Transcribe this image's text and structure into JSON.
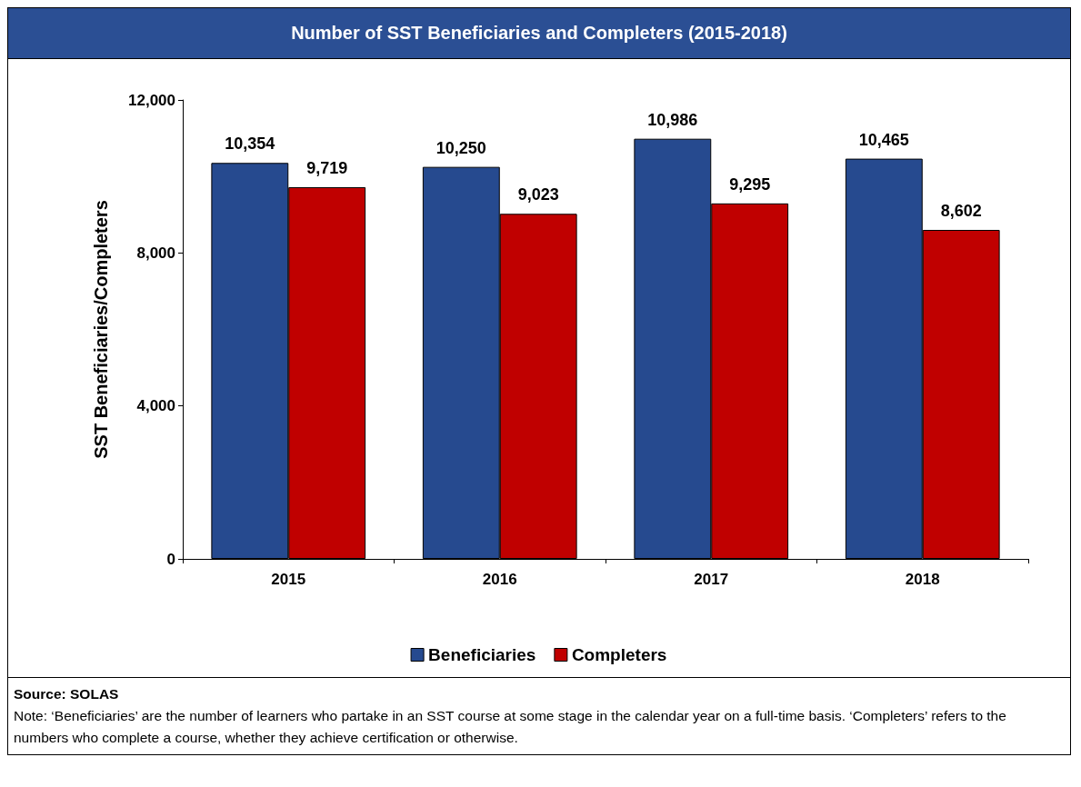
{
  "chart_data": {
    "type": "bar",
    "title": "Number of SST Beneficiaries and Completers (2015-2018)",
    "ylabel": "SST Beneficiaries/Completers",
    "categories": [
      "2015",
      "2016",
      "2017",
      "2018"
    ],
    "series": [
      {
        "name": "Beneficiaries",
        "color": "#264a8f",
        "values": [
          10354,
          10250,
          10986,
          10465
        ],
        "value_labels": [
          "10,354",
          "10,250",
          "10,986",
          "10,465"
        ]
      },
      {
        "name": "Completers",
        "color": "#c00000",
        "values": [
          9719,
          9023,
          9295,
          8602
        ],
        "value_labels": [
          "9,719",
          "9,023",
          "9,295",
          "8,602"
        ]
      }
    ],
    "ylim": [
      0,
      12000
    ],
    "yticks": [
      0,
      {
        "value": 4000,
        "label": "4,000"
      },
      {
        "value": 8000,
        "label": "8,000"
      },
      {
        "value": 12000,
        "label": "12,000"
      }
    ],
    "grid": false,
    "legend": "bottom",
    "annotations": [
      "Source: SOLAS",
      "Note: ‘Beneficiaries’ are the number of learners who partake in an SST course at some stage in the calendar year on a full-time basis. ‘Completers’ refers to the numbers who complete a course, whether they achieve certification or otherwise."
    ]
  }
}
